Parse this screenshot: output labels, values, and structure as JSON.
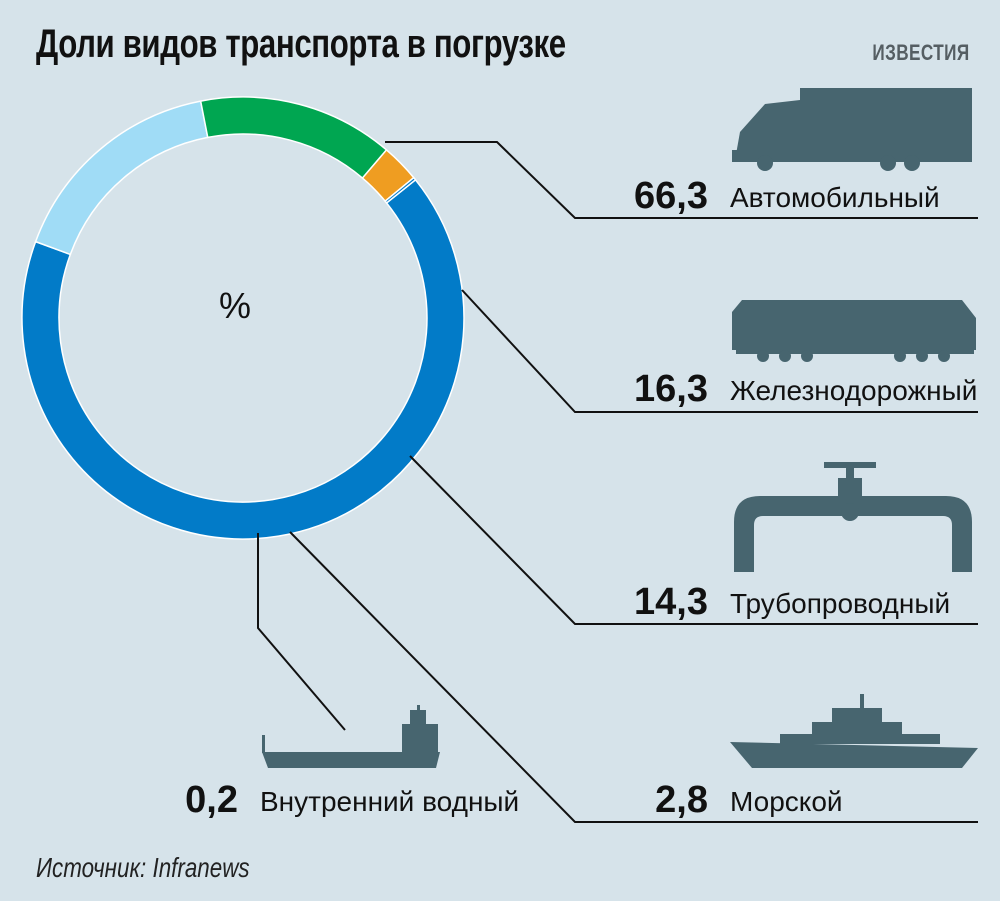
{
  "title": "Доли видов транспорта в погрузке",
  "brand": "ИЗВЕСТИЯ",
  "source": "Источник: Infranews",
  "colors": {
    "background": "#d6e3ea",
    "icon": "#47656f",
    "leader": "#111111"
  },
  "chart_data": {
    "type": "pie",
    "style": "donut",
    "title": "Доли видов транспорта в погрузке",
    "center_label": "%",
    "unit": "%",
    "slices": [
      {
        "label": "Автомобильный",
        "value": 66.3,
        "value_text": "66,3",
        "color": "#027bc8",
        "icon": "truck-icon"
      },
      {
        "label": "Железнодорожный",
        "value": 16.3,
        "value_text": "16,3",
        "color": "#a0dcf6",
        "icon": "locomotive-icon"
      },
      {
        "label": "Трубопроводный",
        "value": 14.3,
        "value_text": "14,3",
        "color": "#00a651",
        "icon": "pipeline-icon"
      },
      {
        "label": "Морской",
        "value": 2.8,
        "value_text": "2,8",
        "color": "#ef9d21",
        "icon": "sea-ship-icon"
      },
      {
        "label": "Внутренний водный",
        "value": 0.2,
        "value_text": "0,2",
        "color": "#027bc8",
        "icon": "river-barge-icon"
      }
    ]
  }
}
